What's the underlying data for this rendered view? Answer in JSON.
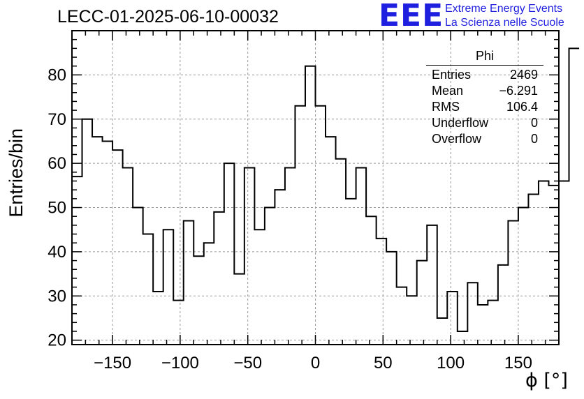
{
  "chart_data": {
    "type": "histogram",
    "title": "LECC-01-2025-06-10-00032",
    "xlabel": "ϕ [°]",
    "ylabel": "Entries/bin",
    "xlim": [
      -180,
      180
    ],
    "ylim": [
      19,
      90
    ],
    "grid": true,
    "x_ticks": [
      -150,
      -100,
      -50,
      0,
      50,
      100,
      150
    ],
    "x_tick_labels": [
      "−150",
      "−100",
      "−50",
      "0",
      "50",
      "100",
      "150"
    ],
    "y_ticks": [
      20,
      30,
      40,
      50,
      60,
      70,
      80
    ],
    "y_tick_labels": [
      "20",
      "30",
      "40",
      "50",
      "60",
      "70",
      "80"
    ],
    "bin_width": 7.5,
    "bin_edges_start": -180,
    "counts": [
      57,
      70,
      66,
      65,
      63,
      59,
      50,
      44,
      31,
      45,
      29,
      47,
      39,
      42,
      49,
      60,
      35,
      59,
      45,
      50,
      54,
      59,
      73,
      82,
      73,
      66,
      61,
      52,
      59,
      48,
      43,
      40,
      32,
      30,
      38,
      46,
      25,
      31,
      22,
      33,
      28,
      29,
      37,
      47,
      50,
      53,
      56,
      55,
      56,
      86
    ],
    "stats": {
      "name": "Phi",
      "rows": [
        {
          "label": "Entries",
          "value": "2469"
        },
        {
          "label": "Mean",
          "value": "−6.291"
        },
        {
          "label": "RMS",
          "value": "106.4"
        },
        {
          "label": "Underflow",
          "value": "0"
        },
        {
          "label": "Overflow",
          "value": "0"
        }
      ]
    }
  },
  "logo": {
    "mark": "EEE",
    "line1": "Extreme Energy Events",
    "line2": "La Scienza nelle Scuole",
    "color": "#1f1fe0"
  }
}
